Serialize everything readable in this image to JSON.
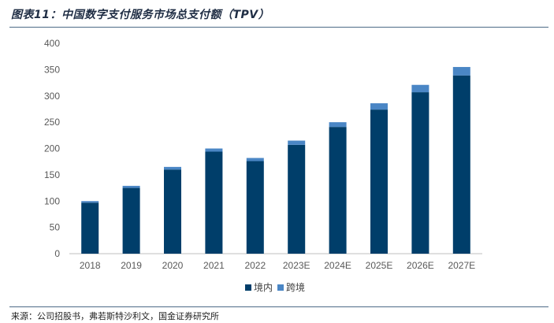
{
  "header": {
    "title": "图表11：中国数字支付服务市场总支付额（TPV）"
  },
  "footer": {
    "source": "来源：公司招股书，弗若斯特沙利文，国金证券研究所"
  },
  "chart_data": {
    "type": "bar",
    "stacked": true,
    "categories": [
      "2018",
      "2019",
      "2020",
      "2021",
      "2022",
      "2023E",
      "2024E",
      "2025E",
      "2026E",
      "2027E"
    ],
    "series": [
      {
        "name": "境内",
        "color": "#003e6a",
        "values": [
          97,
          125,
          160,
          194,
          176,
          207,
          241,
          274,
          307,
          339
        ]
      },
      {
        "name": "跨境",
        "color": "#4a86c5",
        "values": [
          3,
          4,
          5,
          6,
          6,
          8,
          9,
          12,
          14,
          16
        ]
      }
    ],
    "yticks": [
      "0",
      "50",
      "100",
      "150",
      "200",
      "250",
      "300",
      "350",
      "400"
    ],
    "ylim": [
      0,
      400
    ],
    "grid": false,
    "legend": "bottom-center"
  }
}
